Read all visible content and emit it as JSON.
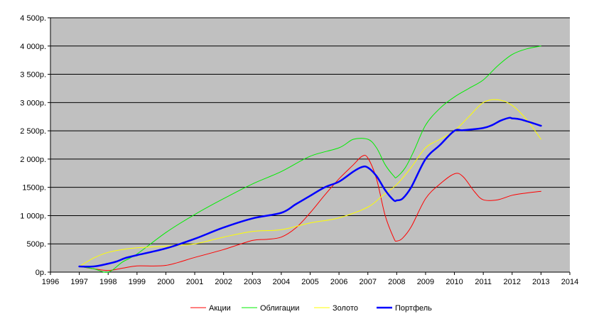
{
  "chart_data": {
    "type": "line",
    "title": "",
    "xlabel": "",
    "ylabel": "",
    "xlim": [
      1996,
      2014
    ],
    "ylim": [
      0,
      4500
    ],
    "x_ticks": [
      "1996",
      "1997",
      "1998",
      "1999",
      "2000",
      "2001",
      "2002",
      "2003",
      "2004",
      "2005",
      "2006",
      "2007",
      "2008",
      "2009",
      "2010",
      "2011",
      "2012",
      "2013",
      "2014"
    ],
    "y_ticks": [
      "0р.",
      "500р.",
      "1 000р.",
      "1500р.",
      "2 000р.",
      "2 500р.",
      "3 000р.",
      "3 500р.",
      "4 000р.",
      "4 500р."
    ],
    "y_tick_values": [
      0,
      500,
      1000,
      1500,
      2000,
      2500,
      3000,
      3500,
      4000,
      4500
    ],
    "grid": "horizontal",
    "plot_background": "#c0c0c0",
    "legend_position": "bottom",
    "series": [
      {
        "name": "Акции",
        "color": "#ff0000",
        "width": 1,
        "x": [
          1997,
          1997.5,
          1998,
          1998.5,
          1999,
          2000,
          2001,
          2002,
          2003,
          2003.5,
          2004,
          2004.5,
          2005,
          2005.5,
          2006,
          2006.5,
          2006.8,
          2007,
          2007.3,
          2007.6,
          2007.9,
          2008,
          2008.2,
          2008.5,
          2009,
          2009.5,
          2010,
          2010.3,
          2010.7,
          2011,
          2011.5,
          2012,
          2012.5,
          2013
        ],
        "y": [
          100,
          60,
          30,
          70,
          110,
          120,
          260,
          400,
          560,
          580,
          620,
          780,
          1050,
          1360,
          1650,
          1900,
          2050,
          2020,
          1650,
          1000,
          600,
          550,
          600,
          800,
          1300,
          1560,
          1740,
          1690,
          1420,
          1280,
          1280,
          1360,
          1400,
          1430
        ]
      },
      {
        "name": "Облигации",
        "color": "#00ee00",
        "width": 1,
        "x": [
          1997,
          1997.5,
          1998,
          1998.5,
          1999,
          2000,
          2001,
          2002,
          2003,
          2004,
          2005,
          2006,
          2006.5,
          2007,
          2007.3,
          2007.6,
          2007.9,
          2008,
          2008.3,
          2008.6,
          2009,
          2009.5,
          2010,
          2010.5,
          2011,
          2011.5,
          2012,
          2012.5,
          2013
        ],
        "y": [
          100,
          60,
          0,
          180,
          320,
          700,
          1020,
          1300,
          1560,
          1780,
          2050,
          2200,
          2350,
          2350,
          2200,
          1900,
          1700,
          1680,
          1850,
          2150,
          2600,
          2900,
          3100,
          3250,
          3400,
          3650,
          3850,
          3950,
          4000
        ]
      },
      {
        "name": "Золото",
        "color": "#ffff00",
        "width": 1,
        "x": [
          1997,
          1997.5,
          1998,
          1998.5,
          1999,
          2000,
          2001,
          2002,
          2003,
          2004,
          2005,
          2006,
          2007,
          2007.5,
          2008,
          2008.5,
          2009,
          2009.5,
          2010,
          2010.5,
          2011,
          2011.5,
          2012,
          2012.5,
          2013
        ],
        "y": [
          100,
          250,
          350,
          400,
          430,
          460,
          500,
          620,
          720,
          750,
          870,
          960,
          1150,
          1350,
          1550,
          1850,
          2200,
          2350,
          2500,
          2750,
          3000,
          3050,
          2950,
          2700,
          2350
        ]
      },
      {
        "name": "Портфель",
        "color": "#0000ff",
        "width": 2.5,
        "x": [
          1997,
          1997.5,
          1998,
          1998.3,
          1998.6,
          1999,
          2000,
          2001,
          2002,
          2003,
          2004,
          2004.5,
          2005,
          2005.5,
          2006,
          2006.5,
          2006.8,
          2007,
          2007.3,
          2007.6,
          2007.9,
          2008,
          2008.2,
          2008.5,
          2009,
          2009.5,
          2010,
          2010.3,
          2011,
          2011.3,
          2011.6,
          2011.9,
          2012,
          2012.3,
          2013
        ],
        "y": [
          100,
          100,
          150,
          190,
          250,
          300,
          420,
          590,
          790,
          950,
          1050,
          1200,
          1350,
          1500,
          1600,
          1780,
          1860,
          1850,
          1700,
          1450,
          1270,
          1270,
          1300,
          1500,
          2000,
          2250,
          2500,
          2510,
          2550,
          2600,
          2680,
          2730,
          2720,
          2700,
          2590
        ]
      }
    ]
  }
}
